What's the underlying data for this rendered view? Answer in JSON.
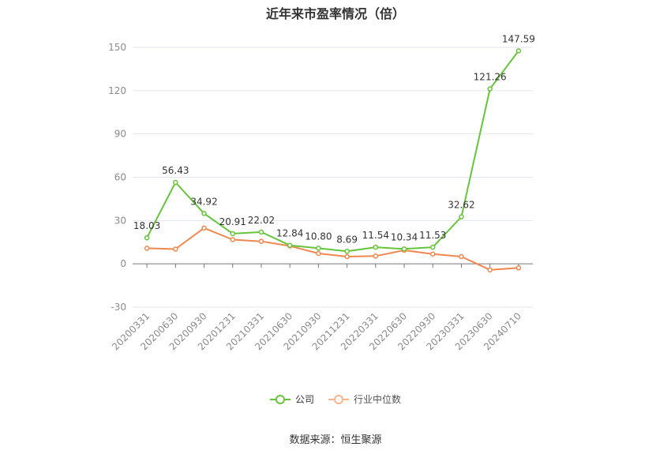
{
  "chart_data": {
    "type": "line",
    "title": "近年来市盈率情况（倍）",
    "categories": [
      "20200331",
      "20200630",
      "20200930",
      "20201231",
      "20210331",
      "20210630",
      "20210930",
      "20211231",
      "20220331",
      "20220630",
      "20220930",
      "20230331",
      "20230630",
      "20240710"
    ],
    "series": [
      {
        "name": "公司",
        "color": "#66c43c",
        "values": [
          18.03,
          56.43,
          34.92,
          20.91,
          22.02,
          12.84,
          10.8,
          8.69,
          11.54,
          10.34,
          11.53,
          32.62,
          121.26,
          147.59
        ],
        "labels": [
          "18.03",
          "56.43",
          "34.92",
          "20.91",
          "22.02",
          "12.84",
          "10.80",
          "8.69",
          "11.54",
          "10.34",
          "11.53",
          "32.62",
          "121.26",
          "147.59"
        ]
      },
      {
        "name": "行业中位数",
        "color": "#f0874f",
        "values": [
          10.8,
          10.2,
          24.8,
          16.8,
          15.6,
          12.4,
          7.2,
          5.0,
          5.4,
          9.4,
          6.8,
          5.0,
          -4.2,
          -2.8
        ]
      }
    ],
    "ylim": [
      -30,
      150
    ],
    "yticks": [
      -30,
      0,
      30,
      60,
      90,
      120,
      150
    ],
    "grid": true,
    "legend_position": "bottom"
  },
  "source": "数据来源：恒生聚源"
}
